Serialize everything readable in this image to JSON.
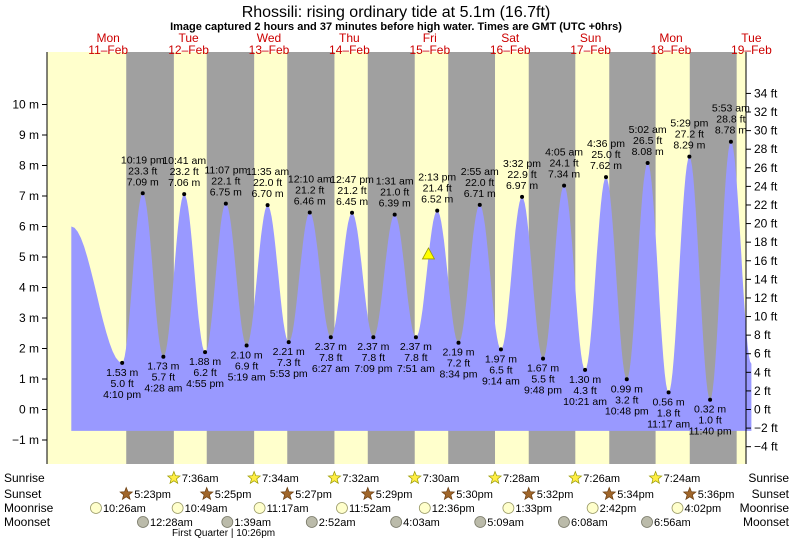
{
  "title": "Rhossili: rising  ordinary tide at 5.1m (16.7ft)",
  "subtitle": "Image captured 2 hours and 37 minutes before high water. Times are GMT (UTC +0hrs)",
  "colors": {
    "day": "#ffffcc",
    "night": "#a0a0a0",
    "water": "#9999ff",
    "day_header": "#cc0000",
    "current_marker": "#ffff00"
  },
  "chart_data": {
    "type": "area",
    "title": "Rhossili: rising  ordinary tide at 5.1m (16.7ft)",
    "ylabel_left_unit": "m",
    "ylabel_right_unit": "ft",
    "ylim_m": [
      -1.5,
      10.6
    ],
    "ylim_ft": [
      -5,
      34.8
    ],
    "left_ticks": [
      "−1 m",
      "0 m",
      "1 m",
      "2 m",
      "3 m",
      "4 m",
      "5 m",
      "6 m",
      "7 m",
      "8 m",
      "9 m",
      "10 m"
    ],
    "left_tick_values": [
      -1,
      0,
      1,
      2,
      3,
      4,
      5,
      6,
      7,
      8,
      9,
      10
    ],
    "right_ticks": [
      "−4 ft",
      "−2 ft",
      "0 ft",
      "2 ft",
      "4 ft",
      "6 ft",
      "8 ft",
      "10 ft",
      "12 ft",
      "14 ft",
      "16 ft",
      "18 ft",
      "20 ft",
      "22 ft",
      "24 ft",
      "26 ft",
      "28 ft",
      "30 ft",
      "32 ft",
      "34 ft"
    ],
    "right_tick_values": [
      -4,
      -2,
      0,
      2,
      4,
      6,
      8,
      10,
      12,
      14,
      16,
      18,
      20,
      22,
      24,
      26,
      28,
      30,
      32,
      34
    ],
    "days": [
      {
        "name": "Mon",
        "date": "11–Feb",
        "time": "Mon 12:00"
      },
      {
        "name": "Tue",
        "date": "12–Feb",
        "time": "Tue 12:00"
      },
      {
        "name": "Wed",
        "date": "13–Feb",
        "time": "Wed 12:00"
      },
      {
        "name": "Thu",
        "date": "14–Feb",
        "time": "Thu 12:00"
      },
      {
        "name": "Fri",
        "date": "15–Feb",
        "time": "Fri 12:00"
      },
      {
        "name": "Sat",
        "date": "16–Feb",
        "time": "Sat 12:00"
      },
      {
        "name": "Sun",
        "date": "17–Feb",
        "time": "Sun 12:00"
      },
      {
        "name": "Mon",
        "date": "18–Feb",
        "time": "Mon 12:00"
      },
      {
        "name": "Tue",
        "date": "19–Feb",
        "time": "Tue 12:00"
      }
    ],
    "night_bands": [
      {
        "from": "Mon 17:23",
        "to": "Tue 07:36"
      },
      {
        "from": "Tue 17:25",
        "to": "Wed 07:34"
      },
      {
        "from": "Wed 17:27",
        "to": "Thu 07:32"
      },
      {
        "from": "Thu 17:29",
        "to": "Fri 07:30"
      },
      {
        "from": "Fri 17:30",
        "to": "Sat 07:28"
      },
      {
        "from": "Sat 17:32",
        "to": "Sun 07:26"
      },
      {
        "from": "Sun 17:34",
        "to": "Mon 07:24"
      },
      {
        "from": "Mon 17:36",
        "to": "Tue 07:36"
      }
    ],
    "curve_start": {
      "time": "Mon 01:00",
      "m": 6.0
    },
    "curve_end": {
      "time": "Tue 12:00",
      "m": 1.5
    },
    "extremes": [
      {
        "type": "low",
        "time": "Mon 16:10",
        "m": 1.53,
        "lines": [
          "1.53 m",
          "5.0 ft",
          "4:10 pm"
        ]
      },
      {
        "type": "high",
        "time": "Mon 22:19",
        "m": 7.09,
        "lines": [
          "10:19 pm",
          "23.3 ft",
          "7.09 m"
        ]
      },
      {
        "type": "low",
        "time": "Tue 04:28",
        "m": 1.73,
        "lines": [
          "1.73 m",
          "5.7 ft",
          "4:28 am"
        ]
      },
      {
        "type": "high",
        "time": "Tue 10:41",
        "m": 7.06,
        "lines": [
          "10:41 am",
          "23.2 ft",
          "7.06 m"
        ]
      },
      {
        "type": "low",
        "time": "Tue 16:55",
        "m": 1.88,
        "lines": [
          "1.88 m",
          "6.2 ft",
          "4:55 pm"
        ]
      },
      {
        "type": "high",
        "time": "Tue 23:07",
        "m": 6.75,
        "lines": [
          "11:07 pm",
          "22.1 ft",
          "6.75 m"
        ]
      },
      {
        "type": "low",
        "time": "Wed 05:19",
        "m": 2.1,
        "lines": [
          "2.10 m",
          "6.9 ft",
          "5:19 am"
        ]
      },
      {
        "type": "high",
        "time": "Wed 11:35",
        "m": 6.7,
        "lines": [
          "11:35 am",
          "22.0 ft",
          "6.70 m"
        ]
      },
      {
        "type": "low",
        "time": "Wed 17:53",
        "m": 2.21,
        "lines": [
          "2.21 m",
          "7.3 ft",
          "5:53 pm"
        ]
      },
      {
        "type": "high",
        "time": "Thu 00:10",
        "m": 6.46,
        "lines": [
          "12:10 am",
          "21.2 ft",
          "6.46 m"
        ]
      },
      {
        "type": "low",
        "time": "Thu 06:27",
        "m": 2.37,
        "lines": [
          "2.37 m",
          "7.8 ft",
          "6:27 am"
        ]
      },
      {
        "type": "high",
        "time": "Thu 12:47",
        "m": 6.45,
        "lines": [
          "12:47 pm",
          "21.2 ft",
          "6.45 m"
        ]
      },
      {
        "type": "low",
        "time": "Thu 19:09",
        "m": 2.37,
        "lines": [
          "2.37 m",
          "7.8 ft",
          "7:09 pm"
        ]
      },
      {
        "type": "high",
        "time": "Fri 01:31",
        "m": 6.39,
        "lines": [
          "1:31 am",
          "21.0 ft",
          "6.39 m"
        ]
      },
      {
        "type": "low",
        "time": "Fri 07:51",
        "m": 2.37,
        "lines": [
          "2.37 m",
          "7.8 ft",
          "7:51 am"
        ]
      },
      {
        "type": "high",
        "time": "Fri 14:13",
        "m": 6.52,
        "lines": [
          "2:13 pm",
          "21.4 ft",
          "6.52 m"
        ]
      },
      {
        "type": "low",
        "time": "Fri 20:34",
        "m": 2.19,
        "lines": [
          "2.19 m",
          "7.2 ft",
          "8:34 pm"
        ]
      },
      {
        "type": "high",
        "time": "Sat 02:55",
        "m": 6.71,
        "lines": [
          "2:55 am",
          "22.0 ft",
          "6.71 m"
        ]
      },
      {
        "type": "low",
        "time": "Sat 09:14",
        "m": 1.97,
        "lines": [
          "1.97 m",
          "6.5 ft",
          "9:14 am"
        ]
      },
      {
        "type": "high",
        "time": "Sat 15:32",
        "m": 6.97,
        "lines": [
          "3:32 pm",
          "22.9 ft",
          "6.97 m"
        ]
      },
      {
        "type": "low",
        "time": "Sat 21:48",
        "m": 1.67,
        "lines": [
          "1.67 m",
          "5.5 ft",
          "9:48 pm"
        ]
      },
      {
        "type": "high",
        "time": "Sun 04:05",
        "m": 7.34,
        "lines": [
          "4:05 am",
          "24.1 ft",
          "7.34 m"
        ]
      },
      {
        "type": "low",
        "time": "Sun 10:21",
        "m": 1.3,
        "lines": [
          "1.30 m",
          "4.3 ft",
          "10:21 am"
        ]
      },
      {
        "type": "high",
        "time": "Sun 16:36",
        "m": 7.62,
        "lines": [
          "4:36 pm",
          "25.0 ft",
          "7.62 m"
        ]
      },
      {
        "type": "low",
        "time": "Sun 22:48",
        "m": 0.99,
        "lines": [
          "0.99 m",
          "3.2 ft",
          "10:48 pm"
        ]
      },
      {
        "type": "high",
        "time": "Mon 05:02",
        "m": 8.08,
        "lines": [
          "5:02 am",
          "26.5 ft",
          "8.08 m"
        ]
      },
      {
        "type": "low",
        "time": "Mon 11:17",
        "m": 0.56,
        "lines": [
          "0.56 m",
          "1.8 ft",
          "11:17 am"
        ]
      },
      {
        "type": "high",
        "time": "Mon 17:29",
        "m": 8.29,
        "lines": [
          "5:29 pm",
          "27.2 ft",
          "8.29 m"
        ]
      },
      {
        "type": "low",
        "time": "Mon 23:40",
        "m": 0.32,
        "lines": [
          "0.32 m",
          "1.0 ft",
          "11:40 pm"
        ]
      },
      {
        "type": "high",
        "time": "Tue 05:53",
        "m": 8.78,
        "lines": [
          "5:53 am",
          "28.8 ft",
          "8.78 m"
        ]
      }
    ],
    "current": {
      "time": "Fri 11:36",
      "m": 5.1
    }
  },
  "rows": {
    "sunrise_label": "Sunrise",
    "sunset_label": "Sunset",
    "moonrise_label": "Moonrise",
    "moonset_label": "Moonset",
    "sunrise": [
      {
        "time": "Tue 07:36",
        "text": "7:36am"
      },
      {
        "time": "Wed 07:34",
        "text": "7:34am"
      },
      {
        "time": "Thu 07:32",
        "text": "7:32am"
      },
      {
        "time": "Fri 07:30",
        "text": "7:30am"
      },
      {
        "time": "Sat 07:28",
        "text": "7:28am"
      },
      {
        "time": "Sun 07:26",
        "text": "7:26am"
      },
      {
        "time": "Mon 07:24",
        "text": "7:24am"
      }
    ],
    "sunset": [
      {
        "time": "Mon 17:23",
        "text": "5:23pm"
      },
      {
        "time": "Tue 17:25",
        "text": "5:25pm"
      },
      {
        "time": "Wed 17:27",
        "text": "5:27pm"
      },
      {
        "time": "Thu 17:29",
        "text": "5:29pm"
      },
      {
        "time": "Fri 17:30",
        "text": "5:30pm"
      },
      {
        "time": "Sat 17:32",
        "text": "5:32pm"
      },
      {
        "time": "Sun 17:34",
        "text": "5:34pm"
      },
      {
        "time": "Mon 17:36",
        "text": "5:36pm"
      }
    ],
    "moonrise": [
      {
        "time": "Mon 10:26",
        "text": "10:26am"
      },
      {
        "time": "Tue 10:49",
        "text": "10:49am"
      },
      {
        "time": "Wed 11:17",
        "text": "11:17am"
      },
      {
        "time": "Thu 11:52",
        "text": "11:52am"
      },
      {
        "time": "Fri 12:36",
        "text": "12:36pm"
      },
      {
        "time": "Sat 13:33",
        "text": "1:33pm"
      },
      {
        "time": "Sun 14:42",
        "text": "2:42pm"
      },
      {
        "time": "Mon 16:02",
        "text": "4:02pm"
      }
    ],
    "moonset": [
      {
        "time": "Tue 00:28",
        "text": "12:28am"
      },
      {
        "time": "Wed 01:39",
        "text": "1:39am"
      },
      {
        "time": "Thu 02:52",
        "text": "2:52am"
      },
      {
        "time": "Fri 04:03",
        "text": "4:03am"
      },
      {
        "time": "Sat 05:09",
        "text": "5:09am"
      },
      {
        "time": "Sun 06:08",
        "text": "6:08am"
      },
      {
        "time": "Mon 06:56",
        "text": "6:56am"
      }
    ],
    "moon_phase": {
      "time": "Tue 22:26",
      "text": "First Quarter | 10:26pm"
    }
  }
}
